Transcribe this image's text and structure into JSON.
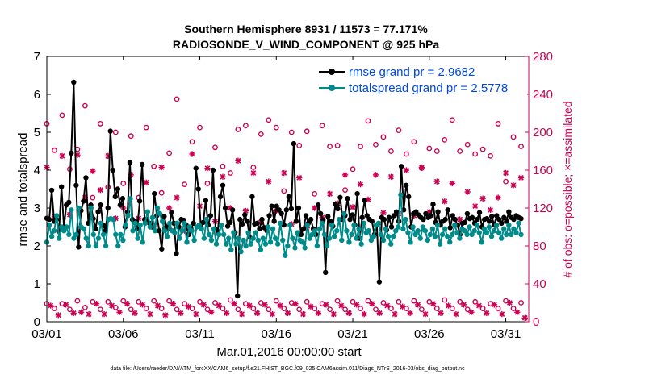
{
  "chart_data": {
    "type": "line",
    "title_line1": "Southern Hemisphere 8931 / 11573 = 77.171%",
    "title_line2": "RADIOSONDE_V_WIND_COMPONENT @ 925 hPa",
    "xlabel": "Mar.01,2016 00:00:00 start",
    "ylabel": "rmse and totalspread",
    "y2label": "# of obs: o=possible; ×=assimilated",
    "footnote": "data file: /Users/raeder/DAI/ATM_forcXX/CAM6_setup/f.e21.FHIST_BGC.f09_025.CAM6assim.011/Diags_NTrS_2016-03/obs_diag_output.nc",
    "xlim": [
      0,
      31.5
    ],
    "ylim": [
      0,
      7
    ],
    "y2lim": [
      0,
      280
    ],
    "x_ticks": [
      {
        "pos": 0,
        "label": "03/01"
      },
      {
        "pos": 5,
        "label": "03/06"
      },
      {
        "pos": 10,
        "label": "03/11"
      },
      {
        "pos": 15,
        "label": "03/16"
      },
      {
        "pos": 20,
        "label": "03/21"
      },
      {
        "pos": 25,
        "label": "03/26"
      },
      {
        "pos": 30,
        "label": "03/31"
      }
    ],
    "y_ticks": [
      0,
      1,
      2,
      3,
      4,
      5,
      6,
      7
    ],
    "y2_ticks": [
      0,
      40,
      80,
      120,
      160,
      200,
      240,
      280
    ],
    "colors": {
      "rmse": "#000000",
      "spread": "#008b8b",
      "obs": "#cc0052",
      "legend_text": "#0047e0"
    },
    "series": [
      {
        "name": "rmse grand pr = 2.9682",
        "values": [
          2.73,
          2.7,
          3.47,
          2.65,
          2.7,
          2.38,
          3.56,
          2.5,
          3.08,
          3.15,
          4.45,
          6.32,
          3.6,
          1.97,
          2.93,
          3.18,
          3.8,
          2.6,
          3.08,
          2.72,
          2.45,
          2.9,
          3.08,
          2.55,
          2.4,
          3.0,
          5.03,
          4.0,
          3.3,
          3.5,
          3.08,
          3.25,
          2.5,
          2.9,
          4.2,
          2.7,
          2.65,
          2.45,
          3.18,
          4.15,
          2.7,
          2.7,
          2.6,
          2.5,
          3.38,
          2.8,
          2.4,
          1.92,
          2.78,
          2.5,
          2.45,
          2.88,
          2.6,
          1.8,
          2.5,
          2.7,
          2.68,
          2.55,
          2.3,
          2.45,
          2.6,
          4.05,
          3.5,
          2.5,
          2.62,
          3.2,
          2.55,
          2.8,
          4.0,
          2.45,
          2.38,
          3.3,
          3.6,
          3.0,
          2.52,
          2.62,
          2.95,
          2.35,
          0.68,
          2.7,
          2.58,
          2.82,
          2.65,
          2.22,
          3.3,
          2.58,
          2.6,
          2.45,
          2.7,
          2.48,
          2.4,
          2.8,
          3.05,
          2.65,
          3.05,
          2.95,
          2.85,
          2.55,
          2.95,
          3.3,
          2.98,
          4.7,
          2.65,
          3.0,
          2.3,
          2.45,
          2.8,
          2.6,
          2.7,
          2.45,
          2.3,
          3.08,
          2.85,
          2.68,
          1.3,
          2.78,
          2.65,
          2.52,
          3.1,
          2.98,
          3.28,
          2.7,
          2.8,
          3.25,
          2.7,
          2.82,
          2.55,
          3.38,
          2.2,
          2.75,
          3.2,
          2.8,
          2.7,
          2.65,
          2.3,
          2.55,
          1.05,
          2.75,
          2.7,
          2.42,
          2.75,
          2.5,
          2.8,
          2.9,
          2.65,
          4.1,
          2.95,
          3.6,
          3.3,
          2.5,
          2.85,
          2.9,
          2.82,
          2.75,
          2.7,
          2.85,
          2.75,
          2.8,
          3.1,
          2.62,
          2.9,
          2.55,
          2.65,
          2.7,
          2.95,
          2.48,
          2.8,
          2.7,
          2.55,
          2.3,
          2.6,
          2.62,
          2.85,
          2.72,
          2.75,
          2.6,
          2.7,
          2.88,
          2.5,
          2.7,
          2.72,
          2.65,
          2.78,
          2.55,
          2.8,
          2.7,
          2.6,
          2.75,
          2.65,
          2.9,
          2.75,
          2.7,
          2.8,
          2.75,
          2.72
        ]
      },
      {
        "name": "totalspread grand pr = 2.5778",
        "values": [
          2.1,
          2.55,
          2.25,
          2.4,
          2.8,
          2.2,
          2.5,
          2.4,
          2.5,
          2.3,
          2.95,
          2.2,
          2.3,
          3.0,
          2.5,
          2.45,
          2.2,
          2.0,
          3.0,
          2.3,
          2.0,
          2.2,
          2.6,
          2.3,
          2.0,
          2.7,
          2.72,
          2.7,
          2.3,
          2.0,
          2.3,
          2.15,
          2.55,
          2.8,
          3.25,
          2.4,
          2.6,
          2.2,
          2.55,
          2.1,
          2.6,
          2.9,
          2.5,
          2.75,
          2.4,
          3.0,
          2.85,
          2.65,
          2.4,
          2.25,
          2.6,
          2.4,
          2.35,
          2.6,
          2.2,
          2.4,
          2.6,
          2.1,
          2.5,
          2.4,
          2.15,
          2.5,
          2.55,
          2.45,
          2.2,
          2.7,
          2.3,
          2.15,
          2.45,
          2.05,
          2.3,
          2.55,
          2.3,
          2.05,
          2.2,
          1.9,
          2.35,
          2.05,
          2.2,
          1.85,
          2.15,
          2.0,
          2.35,
          2.05,
          2.2,
          2.35,
          2.15,
          1.9,
          2.2,
          2.05,
          2.5,
          2.1,
          2.45,
          2.2,
          2.05,
          2.6,
          2.15,
          1.75,
          2.0,
          2.55,
          2.2,
          1.95,
          2.35,
          2.15,
          2.1,
          1.95,
          2.55,
          2.2,
          2.3,
          2.4,
          2.0,
          2.45,
          2.6,
          2.3,
          2.0,
          2.2,
          2.55,
          2.25,
          2.4,
          2.7,
          2.15,
          2.85,
          2.4,
          2.1,
          2.3,
          2.55,
          2.2,
          2.45,
          2.05,
          2.6,
          2.35,
          2.4,
          2.15,
          2.25,
          2.55,
          2.6,
          2.3,
          2.15,
          2.45,
          2.25,
          2.05,
          2.25,
          2.4,
          2.5,
          3.35,
          2.45,
          2.7,
          2.35,
          2.1,
          2.5,
          2.3,
          2.4,
          2.2,
          2.5,
          2.4,
          2.15,
          2.3,
          2.45,
          2.25,
          2.55,
          2.05,
          2.3,
          2.45,
          2.25,
          2.1,
          2.3,
          2.55,
          2.35,
          2.2,
          2.45,
          2.4,
          2.3,
          2.5,
          2.3,
          2.4,
          2.55,
          2.35,
          2.1,
          2.45,
          2.35,
          2.5,
          2.25,
          2.4,
          2.55,
          2.35,
          2.2,
          2.45,
          2.3,
          2.55,
          2.3,
          2.45,
          2.35,
          2.6,
          2.3
        ]
      }
    ],
    "obs_possible_high": [
      [
        0,
        209
      ],
      [
        0.5,
        181
      ],
      [
        1,
        218
      ],
      [
        1.5,
        161
      ],
      [
        2,
        182
      ],
      [
        2.5,
        228
      ],
      [
        3,
        131
      ],
      [
        3.5,
        209
      ],
      [
        4,
        142
      ],
      [
        4.5,
        200
      ],
      [
        5,
        146
      ],
      [
        5.5,
        196
      ],
      [
        6,
        131
      ],
      [
        6.5,
        205
      ],
      [
        7,
        164
      ],
      [
        7.5,
        136
      ],
      [
        8,
        178
      ],
      [
        8.5,
        235
      ],
      [
        9,
        145
      ],
      [
        9.5,
        190
      ],
      [
        10,
        205
      ],
      [
        10.5,
        146
      ],
      [
        11,
        184
      ],
      [
        11.5,
        164
      ],
      [
        12,
        157
      ],
      [
        12.5,
        203
      ],
      [
        13,
        207
      ],
      [
        13.5,
        163
      ],
      [
        14,
        198
      ],
      [
        14.5,
        213
      ],
      [
        15,
        205
      ],
      [
        15.5,
        138
      ],
      [
        16,
        200
      ],
      [
        16.5,
        186
      ],
      [
        17,
        201
      ],
      [
        17.5,
        135
      ],
      [
        18,
        207
      ],
      [
        18.5,
        185
      ],
      [
        19,
        186
      ],
      [
        19.5,
        139
      ],
      [
        20,
        161
      ],
      [
        20.5,
        185
      ],
      [
        21,
        212
      ],
      [
        21.5,
        187
      ],
      [
        22,
        195
      ],
      [
        22.5,
        180
      ],
      [
        23,
        202
      ],
      [
        23.5,
        177
      ],
      [
        24,
        190
      ],
      [
        24.5,
        162
      ],
      [
        25,
        183
      ],
      [
        25.5,
        180
      ],
      [
        26,
        192
      ],
      [
        26.5,
        213
      ],
      [
        27,
        180
      ],
      [
        27.5,
        187
      ],
      [
        28,
        177
      ],
      [
        28.5,
        182
      ],
      [
        29,
        175
      ],
      [
        29.5,
        209
      ],
      [
        30,
        148
      ],
      [
        30.5,
        195
      ],
      [
        31,
        185
      ]
    ],
    "obs_assim_high": [
      [
        0,
        163
      ],
      [
        0.5,
        111
      ],
      [
        1,
        175
      ],
      [
        1.5,
        113
      ],
      [
        2,
        176
      ],
      [
        2.5,
        131
      ],
      [
        3,
        159
      ],
      [
        3.5,
        139
      ],
      [
        4,
        175
      ],
      [
        4.5,
        109
      ],
      [
        5,
        120
      ],
      [
        5.5,
        155
      ],
      [
        6,
        109
      ],
      [
        6.5,
        147
      ],
      [
        7,
        103
      ],
      [
        7.5,
        163
      ],
      [
        8,
        120
      ],
      [
        8.5,
        131
      ],
      [
        9,
        96
      ],
      [
        9.5,
        177
      ],
      [
        10,
        122
      ],
      [
        10.5,
        162
      ],
      [
        11,
        106
      ],
      [
        11.5,
        153
      ],
      [
        12,
        120
      ],
      [
        12.5,
        170
      ],
      [
        13,
        117
      ],
      [
        13.5,
        157
      ],
      [
        14,
        105
      ],
      [
        14.5,
        148
      ],
      [
        15,
        117
      ],
      [
        15.5,
        157
      ],
      [
        16,
        103
      ],
      [
        16.5,
        152
      ],
      [
        17,
        99
      ],
      [
        17.5,
        120
      ],
      [
        18,
        110
      ],
      [
        18.5,
        135
      ],
      [
        19,
        125
      ],
      [
        19.5,
        155
      ],
      [
        20,
        121
      ],
      [
        20.5,
        145
      ],
      [
        21,
        129
      ],
      [
        21.5,
        155
      ],
      [
        22,
        115
      ],
      [
        22.5,
        153
      ],
      [
        23,
        114
      ],
      [
        23.5,
        160
      ],
      [
        24,
        112
      ],
      [
        24.5,
        163
      ],
      [
        25,
        116
      ],
      [
        25.5,
        148
      ],
      [
        26,
        127
      ],
      [
        26.5,
        146
      ],
      [
        27,
        108
      ],
      [
        27.5,
        137
      ],
      [
        28,
        122
      ],
      [
        28.5,
        130
      ],
      [
        29,
        118
      ],
      [
        29.5,
        131
      ],
      [
        30,
        157
      ],
      [
        30.5,
        144
      ],
      [
        31,
        152
      ]
    ],
    "obs_possible_low": [
      [
        0,
        19
      ],
      [
        0.5,
        14
      ],
      [
        1,
        19
      ],
      [
        1.5,
        13
      ],
      [
        2,
        22
      ],
      [
        2.5,
        15
      ],
      [
        3,
        21
      ],
      [
        3.5,
        13
      ],
      [
        4,
        21
      ],
      [
        4.5,
        15
      ],
      [
        5,
        22
      ],
      [
        5.5,
        13
      ],
      [
        6,
        21
      ],
      [
        6.5,
        14
      ],
      [
        7,
        22
      ],
      [
        7.5,
        14
      ],
      [
        8,
        22
      ],
      [
        8.5,
        13
      ],
      [
        9,
        19
      ],
      [
        9.5,
        14
      ],
      [
        10,
        21
      ],
      [
        10.5,
        13
      ],
      [
        11,
        20
      ],
      [
        11.5,
        14
      ],
      [
        12,
        23
      ],
      [
        12.5,
        13
      ],
      [
        13,
        19
      ],
      [
        13.5,
        14
      ],
      [
        14,
        20
      ],
      [
        14.5,
        13
      ],
      [
        15,
        22
      ],
      [
        15.5,
        14
      ],
      [
        16,
        20
      ],
      [
        16.5,
        13
      ],
      [
        17,
        21
      ],
      [
        17.5,
        14
      ],
      [
        18,
        19
      ],
      [
        18.5,
        13
      ],
      [
        19,
        22
      ],
      [
        19.5,
        13
      ],
      [
        20,
        21
      ],
      [
        20.5,
        14
      ],
      [
        21,
        22
      ],
      [
        21.5,
        13
      ],
      [
        22,
        20
      ],
      [
        22.5,
        14
      ],
      [
        23,
        21
      ],
      [
        23.5,
        14
      ],
      [
        24,
        22
      ],
      [
        24.5,
        13
      ],
      [
        25,
        21
      ],
      [
        25.5,
        14
      ],
      [
        26,
        23
      ],
      [
        26.5,
        14
      ],
      [
        27,
        21
      ],
      [
        27.5,
        13
      ],
      [
        28,
        21
      ],
      [
        28.5,
        14
      ],
      [
        29,
        19
      ],
      [
        29.5,
        14
      ],
      [
        30,
        22
      ],
      [
        30.5,
        14
      ],
      [
        31,
        20
      ]
    ],
    "obs_assim_low": [
      [
        0.25,
        17
      ],
      [
        0.75,
        7
      ],
      [
        1.25,
        18
      ],
      [
        1.75,
        9
      ],
      [
        2.25,
        10
      ],
      [
        2.75,
        8
      ],
      [
        3.25,
        19
      ],
      [
        3.75,
        8
      ],
      [
        4.25,
        17
      ],
      [
        4.75,
        10
      ],
      [
        5.25,
        19
      ],
      [
        5.75,
        9
      ],
      [
        6.25,
        18
      ],
      [
        6.75,
        8
      ],
      [
        7.25,
        17
      ],
      [
        7.75,
        7
      ],
      [
        8.25,
        19
      ],
      [
        8.75,
        9
      ],
      [
        9.25,
        16
      ],
      [
        9.75,
        8
      ],
      [
        10.25,
        18
      ],
      [
        10.75,
        10
      ],
      [
        11.25,
        17
      ],
      [
        11.75,
        9
      ],
      [
        12.25,
        19
      ],
      [
        12.75,
        8
      ],
      [
        13.25,
        17
      ],
      [
        13.75,
        9
      ],
      [
        14.25,
        18
      ],
      [
        14.75,
        8
      ],
      [
        15.25,
        17
      ],
      [
        15.75,
        9
      ],
      [
        16.25,
        19
      ],
      [
        16.75,
        8
      ],
      [
        17.25,
        16
      ],
      [
        17.75,
        9
      ],
      [
        18.25,
        18
      ],
      [
        18.75,
        8
      ],
      [
        19.25,
        17
      ],
      [
        19.75,
        9
      ],
      [
        20.25,
        18
      ],
      [
        20.75,
        8
      ],
      [
        21.25,
        19
      ],
      [
        21.75,
        9
      ],
      [
        22.25,
        17
      ],
      [
        22.75,
        8
      ],
      [
        23.25,
        16
      ],
      [
        23.75,
        9
      ],
      [
        24.25,
        18
      ],
      [
        24.75,
        8
      ],
      [
        25.25,
        19
      ],
      [
        25.75,
        9
      ],
      [
        26.25,
        17
      ],
      [
        26.75,
        8
      ],
      [
        27.25,
        18
      ],
      [
        27.75,
        10
      ],
      [
        28.25,
        17
      ],
      [
        28.75,
        9
      ],
      [
        29.25,
        18
      ],
      [
        29.75,
        8
      ],
      [
        30.25,
        20
      ],
      [
        30.75,
        10
      ],
      [
        31.25,
        4
      ]
    ]
  }
}
